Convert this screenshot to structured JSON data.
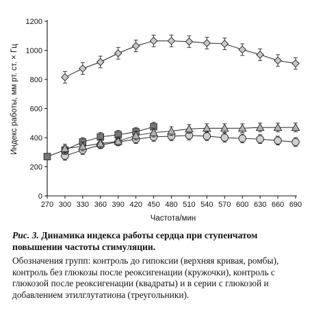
{
  "chart_data": {
    "type": "line",
    "xlabel": "Частота/мин",
    "ylabel": "Индекс работы,  мм рт. ст. × Гц",
    "xlim": [
      270,
      690
    ],
    "ylim": [
      0,
      1200
    ],
    "x_ticks": [
      "270",
      "300",
      "330",
      "360",
      "390",
      "420",
      "450",
      "480",
      "510",
      "540",
      "570",
      "600",
      "630",
      "660",
      "690"
    ],
    "y_ticks": [
      "0",
      "200",
      "400",
      "600",
      "800",
      "1000",
      "1200"
    ],
    "grid": false,
    "legend": "none",
    "series": [
      {
        "marker": "diamond",
        "color": "#c8c8c8",
        "x": [
          300,
          330,
          360,
          390,
          420,
          450,
          480,
          510,
          540,
          570,
          600,
          630,
          660,
          690
        ],
        "y": [
          815,
          875,
          920,
          980,
          1030,
          1065,
          1065,
          1060,
          1050,
          1045,
          1005,
          970,
          930,
          910
        ],
        "err": [
          40,
          40,
          40,
          40,
          40,
          40,
          40,
          40,
          40,
          40,
          40,
          40,
          40,
          40
        ]
      },
      {
        "marker": "circle",
        "color": "#d0d0d0",
        "x": [
          300,
          330,
          360,
          390,
          420,
          450,
          480,
          510,
          540,
          570,
          600,
          630,
          660,
          690
        ],
        "y": [
          275,
          315,
          350,
          370,
          390,
          405,
          410,
          415,
          410,
          400,
          395,
          390,
          380,
          370
        ],
        "err": [
          30,
          30,
          25,
          25,
          30,
          30,
          30,
          30,
          30,
          30,
          30,
          30,
          30,
          30
        ]
      },
      {
        "marker": "square",
        "color": "#777777",
        "x": [
          270,
          300,
          330,
          360,
          390,
          420,
          450
        ],
        "y": [
          270,
          315,
          370,
          405,
          420,
          440,
          475
        ],
        "err": [
          0,
          30,
          30,
          30,
          30,
          30,
          30
        ]
      },
      {
        "marker": "triangle",
        "color": "#b4b4b4",
        "x": [
          300,
          330,
          360,
          390,
          420,
          450,
          480,
          510,
          540,
          570,
          600,
          630,
          660,
          690
        ],
        "y": [
          325,
          340,
          360,
          375,
          415,
          435,
          445,
          460,
          465,
          465,
          465,
          470,
          470,
          470
        ],
        "err": [
          30,
          30,
          30,
          30,
          30,
          30,
          30,
          30,
          30,
          30,
          30,
          30,
          30,
          30
        ]
      }
    ]
  },
  "caption": {
    "fig_label": "Рис. 3.",
    "title": " Динамика индекса работы сердца при ступенчатом повышении частоты стимуляции.",
    "legend_text": "Обозначения групп: контроль до гипоксии (верхняя кривая, ромбы), контроль без глюкозы после реоксигенации (кружочки), контроль с глюкозой после реоксигенации (квадраты) и в серии с глюкозой и добавлением этилглутатиона (треугольники)."
  }
}
